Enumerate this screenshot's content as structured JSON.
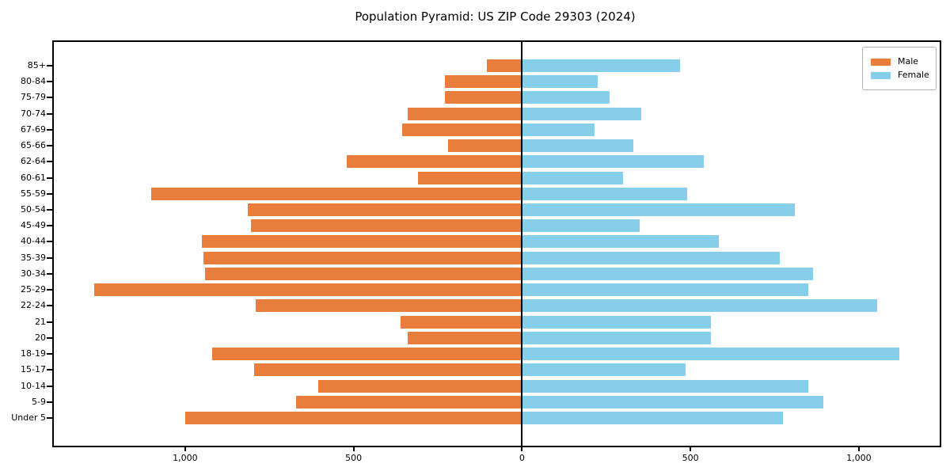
{
  "title": "Population Pyramid: US ZIP Code 29303 (2024)",
  "legend": {
    "items": [
      {
        "label": "Male",
        "color": "#e87d3c"
      },
      {
        "label": "Female",
        "color": "#87ceeb"
      }
    ]
  },
  "chart_data": {
    "type": "bar",
    "subtype": "population-pyramid",
    "orientation": "horizontal",
    "title": "Population Pyramid: US ZIP Code 29303 (2024)",
    "categories_top_to_bottom": [
      "85+",
      "80-84",
      "75-79",
      "70-74",
      "67-69",
      "65-66",
      "62-64",
      "60-61",
      "55-59",
      "50-54",
      "45-49",
      "40-44",
      "35-39",
      "30-34",
      "25-29",
      "22-24",
      "21",
      "20",
      "18-19",
      "15-17",
      "10-14",
      "5-9",
      "Under 5"
    ],
    "series": [
      {
        "name": "Male",
        "side": "left",
        "color": "#e87d3c",
        "values": [
          105,
          230,
          230,
          340,
          355,
          220,
          520,
          310,
          1100,
          815,
          805,
          950,
          945,
          940,
          1270,
          790,
          360,
          340,
          920,
          795,
          605,
          670,
          1000
        ]
      },
      {
        "name": "Female",
        "side": "right",
        "color": "#87ceeb",
        "values": [
          470,
          225,
          260,
          355,
          215,
          330,
          540,
          300,
          490,
          810,
          350,
          585,
          765,
          865,
          850,
          1055,
          560,
          560,
          1120,
          485,
          850,
          895,
          775
        ]
      }
    ],
    "xlim": [
      -1390,
      1240
    ],
    "x_ticks": [
      {
        "value": -1000,
        "label": "1,000"
      },
      {
        "value": -500,
        "label": "500"
      },
      {
        "value": 0,
        "label": "0"
      },
      {
        "value": 500,
        "label": "500"
      },
      {
        "value": 1000,
        "label": "1,000"
      }
    ],
    "zero_line": true,
    "grid": false,
    "legend_position": "upper right"
  }
}
